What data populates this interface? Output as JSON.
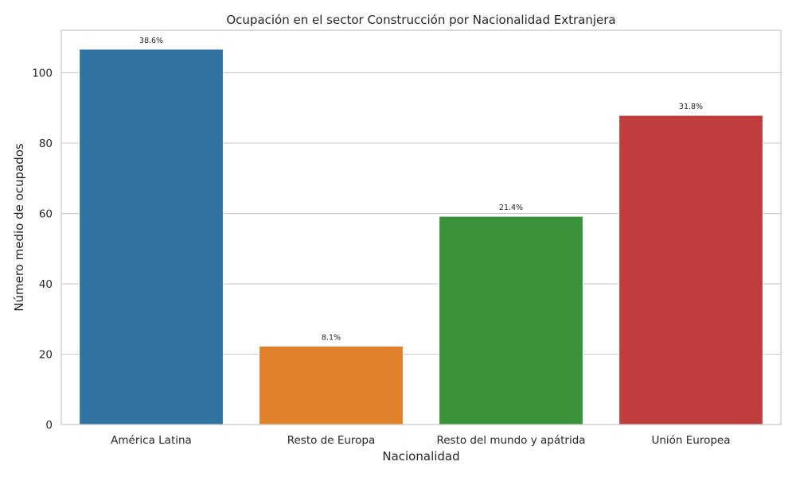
{
  "chart_data": {
    "type": "bar",
    "title": "Ocupación en el sector Construcción por Nacionalidad Extranjera",
    "xlabel": "Nacionalidad",
    "ylabel": "Número medio de ocupados",
    "categories": [
      "América Latina",
      "Resto de Europa",
      "Resto del mundo y apátrida",
      "Unión Europea"
    ],
    "values": [
      106.7,
      22.3,
      59.2,
      87.9
    ],
    "data_labels": [
      "38.6%",
      "8.1%",
      "21.4%",
      "31.8%"
    ],
    "colors": [
      "#3274a1",
      "#e1812c",
      "#3a923a",
      "#c03d3e"
    ],
    "ylim": [
      0,
      112.1
    ],
    "yticks": [
      0,
      20,
      40,
      60,
      80,
      100
    ],
    "grid": "horizontal",
    "legend": "none"
  }
}
